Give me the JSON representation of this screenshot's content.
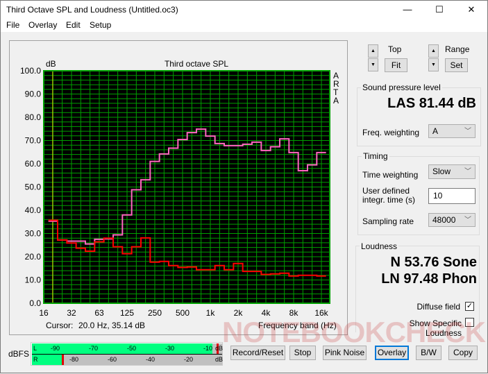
{
  "window": {
    "title": "Third Octave SPL and Loudness (Untitled.oc3)",
    "minimize": "—",
    "maximize": "☐",
    "close": "✕"
  },
  "menu": [
    "File",
    "Overlay",
    "Edit",
    "Setup"
  ],
  "controls": {
    "top_label": "Top",
    "fit": "Fit",
    "range_label": "Range",
    "set": "Set"
  },
  "spl": {
    "group": "Sound pressure level",
    "value": "LAS 81.44 dB",
    "freq_weighting_label": "Freq. weighting",
    "freq_weighting": "A"
  },
  "timing": {
    "group": "Timing",
    "time_weighting_label": "Time weighting",
    "time_weighting": "Slow",
    "integr_label_1": "User defined",
    "integr_label_2": "integr. time (s)",
    "integr_value": "10",
    "sampling_label": "Sampling rate",
    "sampling_rate": "48000"
  },
  "loudness": {
    "group": "Loudness",
    "n": "N 53.76 Sone",
    "ln": "LN 97.48 Phon",
    "diffuse_label": "Diffuse field",
    "diffuse_checked": true,
    "specific_label": "Show Specific Loudness",
    "specific_checked": false
  },
  "meter": {
    "label": "dBFS",
    "L": "L",
    "R": "R",
    "unit": "dB",
    "l_ticks": [
      "-90",
      "-70",
      "-50",
      "-30",
      "-10"
    ],
    "r_ticks": [
      "-80",
      "-60",
      "-40",
      "-20"
    ],
    "l_level_dbfs": -7,
    "l_peak_dbfs": -5,
    "r_level_dbfs": -86,
    "r_peak_dbfs": -86
  },
  "buttons": {
    "record": "Record/Reset",
    "stop": "Stop",
    "pink": "Pink Noise",
    "overlay": "Overlay",
    "bw": "B/W",
    "copy": "Copy"
  },
  "watermark": "NOTEBOOKCHECK",
  "chart_data": {
    "type": "line",
    "title": "Third octave SPL",
    "ylabel": "dB",
    "xlabel": "Frequency band (Hz)",
    "brand": "ARTA",
    "cursor_label": "Cursor:",
    "cursor_value": "20.0 Hz, 35.14 dB",
    "cursor_hz": 20,
    "ylim": [
      0,
      100
    ],
    "yticks": [
      "0.0",
      "10.0",
      "20.0",
      "30.0",
      "40.0",
      "50.0",
      "60.0",
      "70.0",
      "80.0",
      "90.0",
      "100.0"
    ],
    "xticks": [
      "16",
      "32",
      "63",
      "125",
      "250",
      "500",
      "1k",
      "2k",
      "4k",
      "8k",
      "16k"
    ],
    "grid": true,
    "colors": {
      "background": "#000000",
      "grid": "#00a000",
      "cursor": "#e0e000"
    },
    "bands": [
      "20",
      "25",
      "31.5",
      "40",
      "50",
      "63",
      "80",
      "100",
      "125",
      "160",
      "200",
      "250",
      "315",
      "400",
      "500",
      "630",
      "800",
      "1k",
      "1.25k",
      "1.6k",
      "2k",
      "2.5k",
      "3.15k",
      "4k",
      "5k",
      "6.3k",
      "8k",
      "10k",
      "12.5k",
      "16k"
    ],
    "series": [
      {
        "color": "#ff66c0",
        "values": [
          35.3,
          27.2,
          26.7,
          26.7,
          25.5,
          27.5,
          27.7,
          29.4,
          38.0,
          48.8,
          53.1,
          61.0,
          64.2,
          66.7,
          70.4,
          73.4,
          74.9,
          71.9,
          68.7,
          67.8,
          67.8,
          68.4,
          69.3,
          65.7,
          67.3,
          70.7,
          64.8,
          57.0,
          59.5,
          64.8
        ]
      },
      {
        "color": "#ff0000",
        "values": [
          35.7,
          27.2,
          25.9,
          23.7,
          22.4,
          26.4,
          28.0,
          24.3,
          21.3,
          24.3,
          28.1,
          17.7,
          18.0,
          16.2,
          15.4,
          15.6,
          14.4,
          14.4,
          16.2,
          14.4,
          17.1,
          13.7,
          13.7,
          12.4,
          12.6,
          12.9,
          11.7,
          12.0,
          12.0,
          11.7
        ]
      }
    ]
  }
}
